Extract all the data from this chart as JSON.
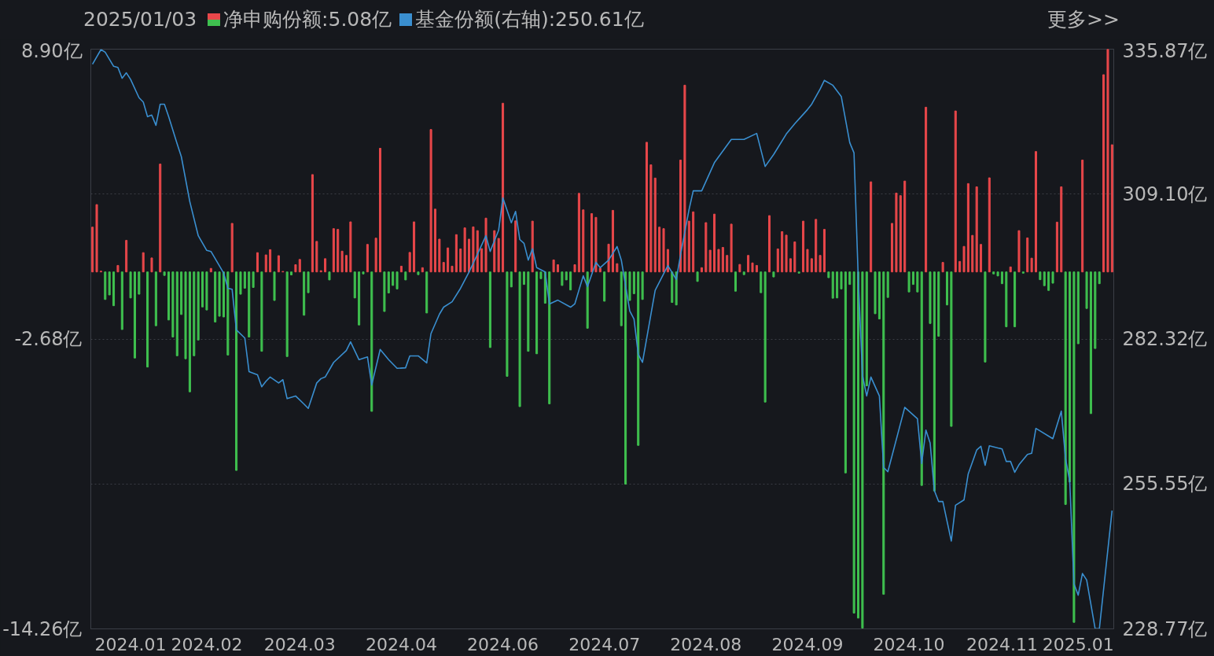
{
  "chart_data": {
    "type": "bar",
    "title": "2025/01/03",
    "annotations": [
      "更多>>"
    ],
    "categories": [
      null,
      null,
      null,
      null,
      null,
      null,
      null,
      null,
      null,
      "2024.01",
      null,
      null,
      null,
      null,
      null,
      null,
      null,
      null,
      null,
      null,
      null,
      null,
      null,
      null,
      null,
      null,
      null,
      "2024.02",
      null,
      null,
      null,
      null,
      null,
      null,
      null,
      null,
      null,
      null,
      null,
      null,
      null,
      null,
      null,
      null,
      null,
      null,
      null,
      null,
      null,
      "2024.03",
      null,
      null,
      null,
      null,
      null,
      null,
      null,
      null,
      null,
      null,
      null,
      null,
      null,
      null,
      null,
      null,
      null,
      null,
      null,
      null,
      null,
      null,
      null,
      "2024.04",
      null,
      null,
      null,
      null,
      null,
      null,
      null,
      null,
      null,
      null,
      null,
      null,
      null,
      null,
      null,
      null,
      null,
      null,
      null,
      null,
      null,
      null,
      null,
      "2024.06",
      null,
      null,
      null,
      null,
      null,
      null,
      null,
      null,
      null,
      null,
      null,
      null,
      null,
      null,
      null,
      null,
      null,
      null,
      null,
      null,
      null,
      null,
      null,
      "2024.07",
      null,
      null,
      null,
      null,
      null,
      null,
      null,
      null,
      null,
      null,
      null,
      null,
      null,
      null,
      null,
      null,
      null,
      null,
      null,
      null,
      null,
      null,
      null,
      "2024.08",
      null,
      null,
      null,
      null,
      null,
      null,
      null,
      null,
      null,
      null,
      null,
      null,
      null,
      null,
      null,
      null,
      null,
      null,
      null,
      null,
      null,
      null,
      null,
      "2024.09",
      null,
      null,
      null,
      null,
      null,
      null,
      null,
      null,
      null,
      null,
      null,
      null,
      null,
      null,
      null,
      null,
      null,
      null,
      null,
      null,
      null,
      null,
      null,
      "2024.10",
      null,
      null,
      null,
      null,
      null,
      null,
      null,
      null,
      null,
      null,
      null,
      null,
      null,
      null,
      null,
      null,
      null,
      null,
      null,
      null,
      null,
      "2024.11",
      null,
      null,
      null,
      null,
      null,
      null,
      null,
      null,
      null,
      null,
      null,
      null,
      null,
      null,
      null,
      null,
      null,
      "2025.01",
      null,
      null,
      null,
      null,
      null,
      null,
      null,
      null
    ],
    "series": [
      {
        "name": "净申购份额:5.08亿",
        "values": [
          1.79,
          2.69,
          0.03,
          -1.1,
          -0.92,
          -1.35,
          0.26,
          -2.3,
          1.26,
          -1.04,
          -3.44,
          -0.89,
          0.77,
          -3.8,
          0.56,
          -2.15,
          4.31,
          -0.14,
          -1.92,
          -2.6,
          -3.35,
          -1.7,
          -3.47,
          -4.79,
          -3.35,
          -2.72,
          -1.4,
          -1.52,
          0.14,
          -2.0,
          -1.77,
          -1.8,
          -3.32,
          1.94,
          -7.93,
          -0.89,
          -0.65,
          -2.6,
          -0.62,
          0.77,
          -3.17,
          0.68,
          0.89,
          -1.14,
          0.65,
          0.02,
          -3.38,
          -0.12,
          0.29,
          0.5,
          -1.73,
          -0.83,
          3.89,
          1.22,
          0.05,
          0.53,
          -0.32,
          1.73,
          1.7,
          0.83,
          0.66,
          2.0,
          -1.04,
          -2.12,
          -0.08,
          1.1,
          -5.57,
          1.35,
          4.94,
          -1.58,
          -0.84,
          -0.54,
          -0.68,
          0.23,
          -0.32,
          0.78,
          2.0,
          -0.11,
          0.17,
          -1.64,
          5.69,
          2.51,
          1.31,
          0.38,
          0.96,
          0.23,
          1.49,
          0.92,
          1.76,
          1.31,
          1.8,
          1.65,
          0.93,
          2.15,
          -3.02,
          1.65,
          1.34,
          6.74,
          -4.17,
          -0.6,
          2.04,
          -5.38,
          -0.5,
          -3.17,
          2.03,
          -3.27,
          -0.27,
          -1.25,
          -5.27,
          0.48,
          0.29,
          -0.54,
          -0.32,
          -0.72,
          0.29,
          3.14,
          2.48,
          -2.25,
          2.33,
          2.18,
          0.15,
          -1.17,
          1.11,
          2.46,
          0.33,
          -2.15,
          -8.48,
          -1.14,
          -0.87,
          -6.93,
          -1.1,
          5.18,
          4.28,
          3.75,
          1.79,
          1.73,
          0.9,
          -1.22,
          -1.32,
          4.47,
          7.46,
          2.03,
          2.4,
          -0.38,
          0.17,
          1.97,
          0.87,
          2.31,
          0.9,
          0.98,
          0.66,
          1.91,
          -0.77,
          0.3,
          -0.11,
          0.66,
          0.36,
          0.26,
          -0.83,
          -5.2,
          2.25,
          -0.2,
          0.92,
          1.61,
          1.47,
          0.53,
          1.2,
          -0.05,
          2.03,
          0.9,
          0.53,
          2.1,
          0.66,
          1.7,
          -0.23,
          -1.05,
          -1.04,
          -0.68,
          -8.03,
          -0.5,
          -13.63,
          -13.83,
          -14.23,
          -4.55,
          3.6,
          -1.67,
          -1.88,
          -12.88,
          -1.02,
          1.94,
          3.15,
          3.05,
          3.63,
          -0.8,
          -0.5,
          -0.8,
          -8.53,
          6.58,
          -2.06,
          -8.75,
          -2.57,
          0.38,
          -1.32,
          -6.17,
          6.43,
          0.42,
          1.02,
          3.53,
          1.46,
          3.4,
          1.1,
          -3.6,
          3.76,
          -0.08,
          -0.16,
          -0.47,
          -2.19,
          0.2,
          -2.19,
          1.65,
          -0.05,
          1.36,
          0.55,
          4.81,
          -0.31,
          -0.55,
          -0.74,
          -0.45,
          1.99,
          3.4,
          -9.29,
          -8.39,
          -14.0,
          -2.87,
          4.47,
          -1.46,
          -5.66,
          -3.06,
          -0.47,
          7.88,
          8.9,
          5.08
        ],
        "colors": [
          "#e8474a",
          "#e8474a",
          "#e8474a",
          "#3fc04f",
          "#3fc04f",
          "#3fc04f",
          "#e8474a",
          "#3fc04f",
          "#e8474a",
          "#3fc04f",
          "#3fc04f",
          "#3fc04f",
          "#e8474a",
          "#3fc04f",
          "#e8474a",
          "#3fc04f",
          "#e8474a",
          "#3fc04f",
          "#3fc04f",
          "#3fc04f",
          "#3fc04f",
          "#3fc04f",
          "#3fc04f",
          "#3fc04f",
          "#3fc04f",
          "#3fc04f",
          "#3fc04f",
          "#3fc04f",
          "#e8474a",
          "#3fc04f",
          "#3fc04f",
          "#3fc04f",
          "#3fc04f",
          "#e8474a",
          "#3fc04f",
          "#3fc04f",
          "#3fc04f",
          "#3fc04f",
          "#3fc04f",
          "#e8474a",
          "#3fc04f",
          "#e8474a",
          "#e8474a",
          "#3fc04f",
          "#e8474a",
          "#e8474a",
          "#3fc04f",
          "#3fc04f",
          "#e8474a",
          "#e8474a",
          "#3fc04f",
          "#3fc04f",
          "#e8474a",
          "#e8474a",
          "#e8474a",
          "#e8474a",
          "#3fc04f",
          "#e8474a",
          "#e8474a",
          "#e8474a",
          "#e8474a",
          "#e8474a",
          "#3fc04f",
          "#3fc04f",
          "#3fc04f",
          "#e8474a",
          "#3fc04f",
          "#e8474a",
          "#e8474a",
          "#3fc04f",
          "#3fc04f",
          "#3fc04f",
          "#3fc04f",
          "#e8474a",
          "#3fc04f",
          "#e8474a",
          "#e8474a",
          "#3fc04f",
          "#e8474a",
          "#3fc04f",
          "#e8474a",
          "#e8474a",
          "#e8474a",
          "#e8474a",
          "#e8474a",
          "#e8474a",
          "#e8474a",
          "#e8474a",
          "#e8474a",
          "#e8474a",
          "#e8474a",
          "#e8474a",
          "#e8474a",
          "#e8474a",
          "#3fc04f",
          "#e8474a",
          "#e8474a",
          "#e8474a",
          "#3fc04f",
          "#3fc04f",
          "#e8474a",
          "#3fc04f",
          "#3fc04f",
          "#3fc04f",
          "#e8474a",
          "#3fc04f",
          "#3fc04f",
          "#3fc04f",
          "#3fc04f",
          "#e8474a",
          "#e8474a",
          "#3fc04f",
          "#3fc04f",
          "#3fc04f",
          "#e8474a",
          "#e8474a",
          "#e8474a",
          "#3fc04f",
          "#e8474a",
          "#e8474a",
          "#e8474a",
          "#3fc04f",
          "#e8474a",
          "#e8474a",
          "#e8474a",
          "#3fc04f",
          "#3fc04f",
          "#3fc04f",
          "#3fc04f",
          "#3fc04f",
          "#3fc04f",
          "#e8474a",
          "#e8474a",
          "#e8474a",
          "#e8474a",
          "#e8474a",
          "#e8474a",
          "#3fc04f",
          "#3fc04f",
          "#e8474a",
          "#e8474a",
          "#e8474a",
          "#e8474a",
          "#3fc04f",
          "#e8474a",
          "#e8474a",
          "#e8474a",
          "#e8474a",
          "#e8474a",
          "#e8474a",
          "#e8474a",
          "#e8474a",
          "#3fc04f",
          "#e8474a",
          "#3fc04f",
          "#e8474a",
          "#e8474a",
          "#e8474a",
          "#3fc04f",
          "#3fc04f",
          "#e8474a",
          "#3fc04f",
          "#e8474a",
          "#e8474a",
          "#e8474a",
          "#e8474a",
          "#e8474a",
          "#3fc04f",
          "#e8474a",
          "#e8474a",
          "#e8474a",
          "#e8474a",
          "#e8474a",
          "#e8474a",
          "#3fc04f",
          "#3fc04f",
          "#3fc04f",
          "#3fc04f",
          "#3fc04f",
          "#3fc04f",
          "#3fc04f",
          "#3fc04f",
          "#3fc04f",
          "#3fc04f",
          "#e8474a",
          "#3fc04f",
          "#3fc04f",
          "#3fc04f",
          "#3fc04f",
          "#e8474a",
          "#e8474a",
          "#e8474a",
          "#e8474a",
          "#3fc04f",
          "#3fc04f",
          "#3fc04f",
          "#3fc04f",
          "#e8474a",
          "#3fc04f",
          "#3fc04f",
          "#3fc04f",
          "#e8474a",
          "#3fc04f",
          "#3fc04f",
          "#e8474a",
          "#e8474a",
          "#e8474a",
          "#e8474a",
          "#e8474a",
          "#e8474a",
          "#e8474a",
          "#3fc04f",
          "#e8474a",
          "#3fc04f",
          "#3fc04f",
          "#3fc04f",
          "#3fc04f",
          "#e8474a",
          "#3fc04f",
          "#e8474a",
          "#3fc04f",
          "#e8474a",
          "#e8474a",
          "#e8474a",
          "#3fc04f",
          "#3fc04f",
          "#3fc04f",
          "#3fc04f",
          "#e8474a",
          "#e8474a",
          "#3fc04f",
          "#3fc04f",
          "#3fc04f",
          "#3fc04f",
          "#e8474a",
          "#3fc04f",
          "#3fc04f",
          "#3fc04f",
          "#3fc04f",
          "#e8474a",
          "#e8474a",
          "#e8474a"
        ]
      },
      {
        "name": "基金份额(右轴):250.61亿",
        "type": "line",
        "axis": "y2",
        "color": "#3a8fd0",
        "values": [
          333.1,
          null,
          335.8,
          335.3,
          null,
          332.7,
          332.5,
          330.5,
          331.5,
          330.3,
          null,
          326.9,
          326.1,
          323.4,
          323.7,
          321.8,
          325.7,
          325.7,
          323.4,
          null,
          318.4,
          316.0,
          null,
          307.7,
          null,
          301.4,
          null,
          298.7,
          298.5,
          null,
          null,
          294.5,
          291.7,
          291.5,
          284.0,
          null,
          282.5,
          276.3,
          null,
          275.7,
          273.5,
          274.5,
          275.3,
          null,
          274.2,
          274.8,
          271.3,
          null,
          271.8,
          null,
          270.3,
          269.5,
          null,
          274.2,
          275.0,
          275.3,
          null,
          278.0,
          null,
          null,
          280.2,
          281.8,
          null,
          278.5,
          null,
          279.0,
          273.8,
          null,
          280.4,
          null,
          278.5,
          null,
          276.9,
          null,
          277.0,
          279.2,
          null,
          279.2,
          null,
          277.9,
          283.3,
          null,
          286.9,
          288.2,
          null,
          289.2,
          null,
          291.7,
          null,
          294.7,
          null,
          298.0,
          null,
          301.4,
          298.5,
          null,
          302.4,
          308.4,
          null,
          303.8,
          305.9,
          300.7,
          300.0,
          296.9,
          299.0,
          295.5,
          null,
          294.7,
          288.8,
          null,
          289.5,
          null,
          null,
          288.2,
          288.8,
          null,
          294.0,
          292.0,
          null,
          296.5,
          295.5,
          null,
          296.9,
          null,
          299.4,
          296.9,
          null,
          287.5,
          286.0,
          279.5,
          278.0,
          null,
          null,
          291.3,
          null,
          null,
          295.9,
          null,
          293.3,
          297.9,
          null,
          306.2,
          309.7,
          null,
          309.7,
          null,
          null,
          314.9,
          null,
          null,
          null,
          319.2,
          null,
          null,
          319.2,
          null,
          null,
          320.3,
          null,
          314.2,
          null,
          316.4,
          null,
          null,
          320.2,
          null,
          322.1,
          null,
          null,
          324.7,
          325.7,
          null,
          328.5,
          330.1,
          null,
          329.2,
          null,
          327.1,
          null,
          318.6,
          316.7,
          293.7,
          275.6,
          271.8,
          275.3,
          null,
          271.8,
          258.6,
          257.8,
          null,
          null,
          null,
          269.7,
          null,
          null,
          267.6,
          259.3,
          265.5,
          263.1,
          254.3,
          252.3,
          252.3,
          null,
          245.0,
          251.6,
          null,
          252.6,
          257.4,
          null,
          261.8,
          262.5,
          259.0,
          262.6,
          null,
          null,
          262.0,
          259.7,
          259.7,
          257.7,
          259.1,
          null,
          261.0,
          261.2,
          265.8,
          null,
          null,
          null,
          263.9,
          null,
          269.0,
          260.3,
          256.0,
          237.1,
          235.0,
          239.0,
          237.8,
          null,
          228.8,
          228.8,
          null,
          null,
          250.61
        ]
      }
    ],
    "ylim": [
      -14.26,
      8.9
    ],
    "yticks": [
      {
        "value": 8.9,
        "label": "8.90亿"
      },
      {
        "value": 3.11,
        "label": null
      },
      {
        "value": -2.68,
        "label": "-2.68亿"
      },
      {
        "value": -8.47,
        "label": null
      },
      {
        "value": -14.26,
        "label": "-14.26亿"
      }
    ],
    "y2lim": [
      228.77,
      335.87
    ],
    "y2ticks": [
      {
        "value": 335.87,
        "label": "335.87亿"
      },
      {
        "value": 309.1,
        "label": "309.10亿"
      },
      {
        "value": 282.32,
        "label": "282.32亿"
      },
      {
        "value": 255.55,
        "label": "255.55亿"
      },
      {
        "value": 228.77,
        "label": "228.77亿"
      }
    ],
    "grid": "y",
    "legend": "top"
  }
}
